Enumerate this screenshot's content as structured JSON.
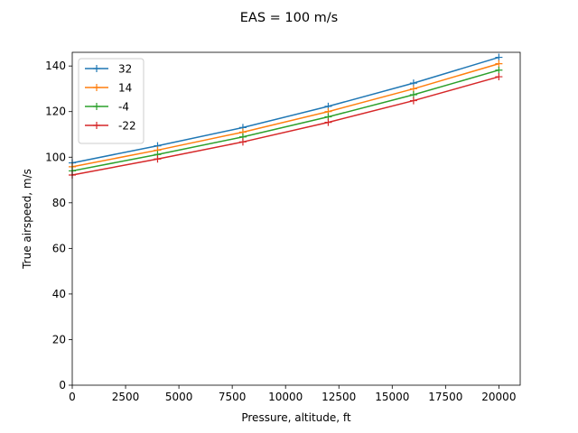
{
  "chart_data": {
    "type": "line",
    "title": "EAS = 100 m/s",
    "xlabel": "Pressure, altitude, ft",
    "ylabel": "True airspeed, m/s",
    "xlim": [
      0,
      21000
    ],
    "ylim": [
      0,
      146
    ],
    "xticks": [
      0,
      2500,
      5000,
      7500,
      10000,
      12500,
      15000,
      17500,
      20000
    ],
    "yticks": [
      0,
      20,
      40,
      60,
      80,
      100,
      120,
      140
    ],
    "grid": false,
    "legend_position": "upper-left",
    "marker": "+",
    "x": [
      0,
      4000,
      8000,
      12000,
      16000,
      20000
    ],
    "series": [
      {
        "name": "32",
        "color": "#1f77b4",
        "values": [
          97.5,
          105.0,
          113.0,
          122.3,
          132.5,
          143.8
        ]
      },
      {
        "name": "14",
        "color": "#ff7f0e",
        "values": [
          95.8,
          103.1,
          111.0,
          120.0,
          130.0,
          141.0
        ]
      },
      {
        "name": "-4",
        "color": "#2ca02c",
        "values": [
          94.0,
          101.2,
          108.9,
          117.7,
          127.4,
          138.2
        ]
      },
      {
        "name": "-22",
        "color": "#d62728",
        "values": [
          92.2,
          99.2,
          106.7,
          115.3,
          124.8,
          135.3
        ]
      }
    ]
  }
}
